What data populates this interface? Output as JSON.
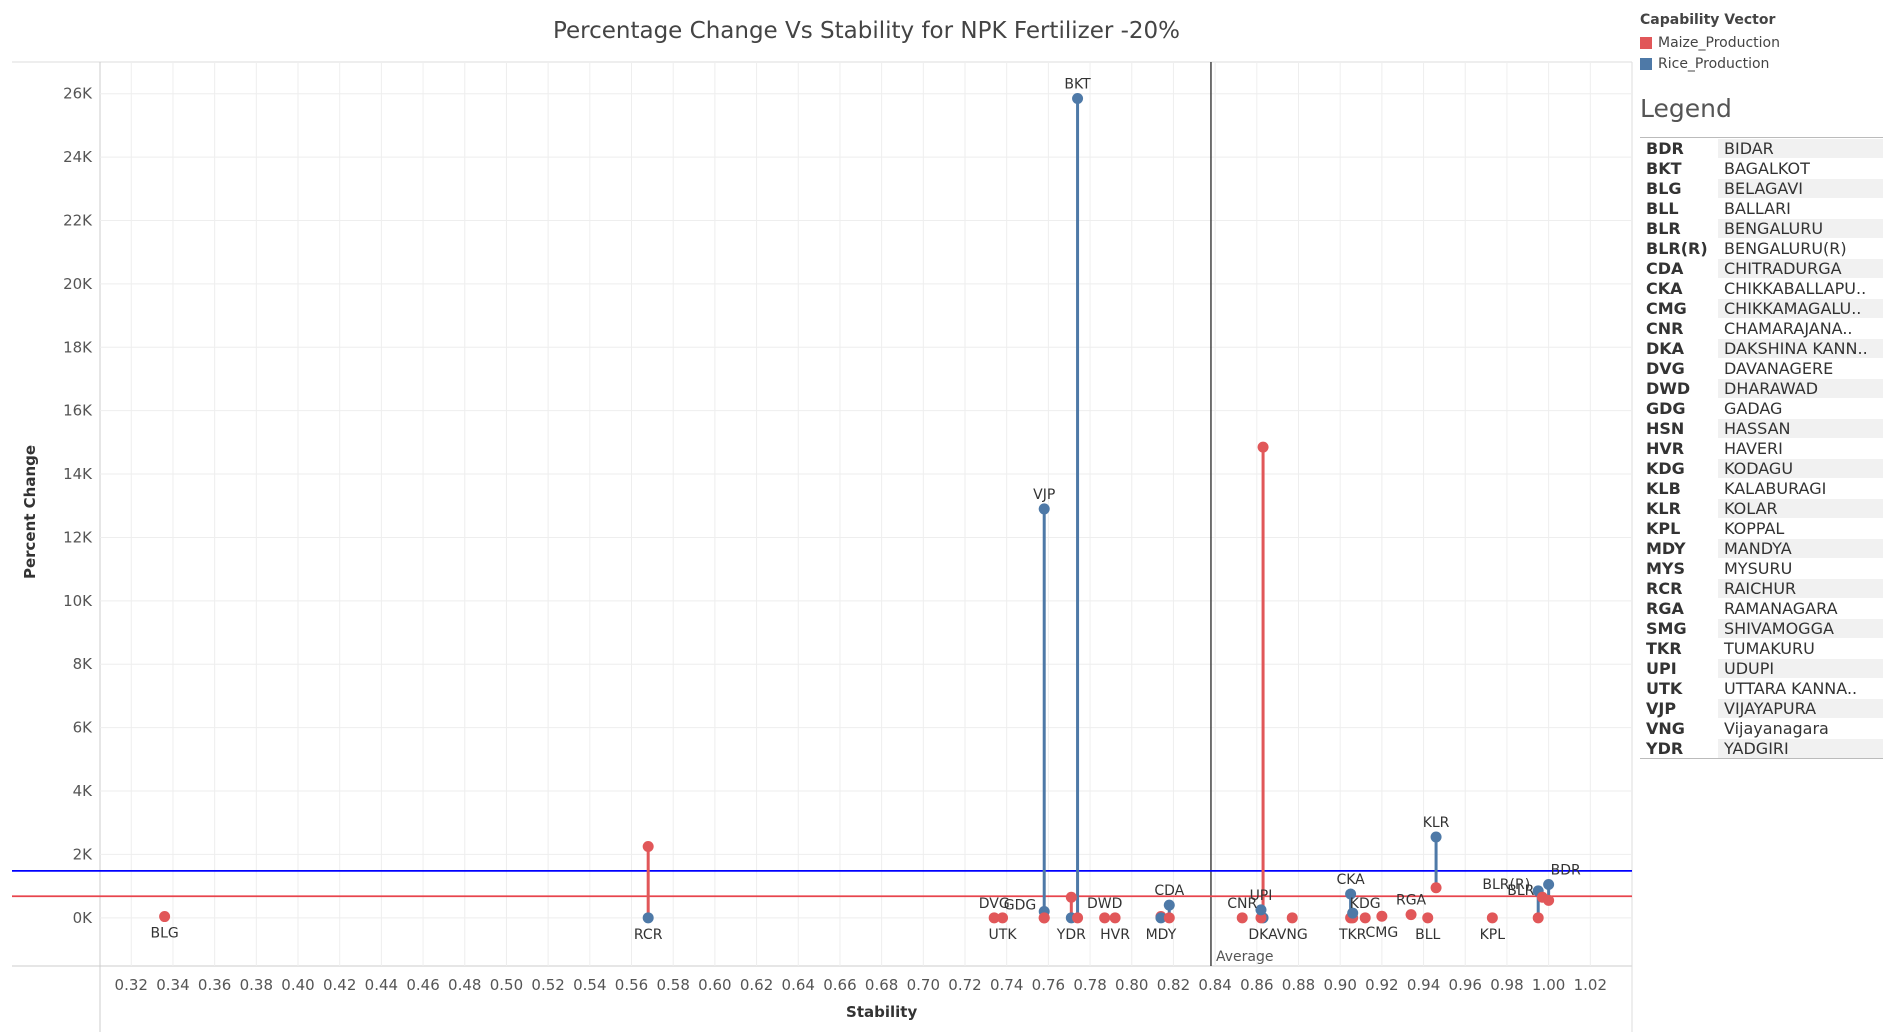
{
  "chart_data": {
    "type": "scatter",
    "title": "Percentage Change Vs Stability for NPK Fertilizer -20%",
    "xlabel": "Stability",
    "ylabel": "Percent Change",
    "xlim": [
      0.305,
      1.04
    ],
    "ylim": [
      -1520,
      27000
    ],
    "x_ticks": [
      "0.32",
      "0.34",
      "0.36",
      "0.38",
      "0.40",
      "0.42",
      "0.44",
      "0.46",
      "0.48",
      "0.50",
      "0.52",
      "0.54",
      "0.56",
      "0.58",
      "0.60",
      "0.62",
      "0.64",
      "0.66",
      "0.68",
      "0.70",
      "0.72",
      "0.74",
      "0.76",
      "0.78",
      "0.80",
      "0.82",
      "0.84",
      "0.86",
      "0.88",
      "0.90",
      "0.92",
      "0.94",
      "0.96",
      "0.98",
      "1.00",
      "1.02"
    ],
    "y_ticks": [
      {
        "value": 0,
        "label": "0K"
      },
      {
        "value": 2000,
        "label": "2K"
      },
      {
        "value": 4000,
        "label": "4K"
      },
      {
        "value": 6000,
        "label": "6K"
      },
      {
        "value": 8000,
        "label": "8K"
      },
      {
        "value": 10000,
        "label": "10K"
      },
      {
        "value": 12000,
        "label": "12K"
      },
      {
        "value": 14000,
        "label": "14K"
      },
      {
        "value": 16000,
        "label": "16K"
      },
      {
        "value": 18000,
        "label": "18K"
      },
      {
        "value": 20000,
        "label": "20K"
      },
      {
        "value": 22000,
        "label": "22K"
      },
      {
        "value": 24000,
        "label": "24K"
      },
      {
        "value": 26000,
        "label": "26K"
      }
    ],
    "reference_lines": {
      "vertical": {
        "x": 0.838,
        "label": "Average",
        "color": "#444444"
      },
      "horizontal": [
        {
          "y": 1480,
          "color": "#0000ff"
        },
        {
          "y": 680,
          "color": "#e8444c"
        }
      ]
    },
    "grid": true,
    "series": [
      {
        "name": "Maize_Production",
        "color": "#e15759"
      },
      {
        "name": "Rice_Production",
        "color": "#4e79a7"
      }
    ],
    "points": [
      {
        "code": "BLG",
        "x": 0.336,
        "maize": 40,
        "rice": null,
        "label_pos": "below"
      },
      {
        "code": "RCR",
        "x": 0.568,
        "maize": 2250,
        "rice": 0,
        "label_pos": "below"
      },
      {
        "code": "DVG",
        "x": 0.734,
        "maize": 0,
        "rice": null,
        "label_pos": "above"
      },
      {
        "code": "UTK",
        "x": 0.738,
        "maize": 0,
        "rice": null,
        "label_pos": "below"
      },
      {
        "code": "GDG",
        "x": 0.758,
        "maize": 0,
        "rice": 200,
        "label_pos": "left"
      },
      {
        "code": "VJP",
        "x": 0.758,
        "maize": 0,
        "rice": 12900,
        "label_pos": "above"
      },
      {
        "code": "YDR",
        "x": 0.771,
        "maize": 650,
        "rice": 0,
        "label_pos": "below"
      },
      {
        "code": "BKT",
        "x": 0.774,
        "maize": 0,
        "rice": 25850,
        "label_pos": "above"
      },
      {
        "code": "DWD",
        "x": 0.787,
        "maize": 0,
        "rice": null,
        "label_pos": "above"
      },
      {
        "code": "HVR",
        "x": 0.792,
        "maize": 0,
        "rice": null,
        "label_pos": "below"
      },
      {
        "code": "MDY",
        "x": 0.814,
        "maize": 40,
        "rice": 0,
        "label_pos": "below"
      },
      {
        "code": "CDA",
        "x": 0.818,
        "maize": 0,
        "rice": 400,
        "label_pos": "above"
      },
      {
        "code": "CNR",
        "x": 0.853,
        "maize": 0,
        "rice": null,
        "label_pos": "above"
      },
      {
        "code": "DKA",
        "x": 0.863,
        "maize": 14850,
        "rice": 0,
        "label_pos": "below"
      },
      {
        "code": "UPI",
        "x": 0.862,
        "maize": 0,
        "rice": 250,
        "label_pos": "above"
      },
      {
        "code": "VNG",
        "x": 0.877,
        "maize": 0,
        "rice": null,
        "label_pos": "below"
      },
      {
        "code": "CKA",
        "x": 0.905,
        "maize": 0,
        "rice": 750,
        "label_pos": "above"
      },
      {
        "code": "TKR",
        "x": 0.906,
        "maize": 0,
        "rice": 150,
        "label_pos": "below"
      },
      {
        "code": "KDG",
        "x": 0.912,
        "maize": 0,
        "rice": null,
        "label_pos": "above"
      },
      {
        "code": "CMG",
        "x": 0.92,
        "maize": 50,
        "rice": null,
        "label_pos": "below"
      },
      {
        "code": "RGA",
        "x": 0.934,
        "maize": 100,
        "rice": null,
        "label_pos": "above"
      },
      {
        "code": "BLL",
        "x": 0.942,
        "maize": 0,
        "rice": null,
        "label_pos": "below"
      },
      {
        "code": "KLR",
        "x": 0.946,
        "maize": 950,
        "rice": 2550,
        "label_pos": "above"
      },
      {
        "code": "KPL",
        "x": 0.973,
        "maize": 0,
        "rice": null,
        "label_pos": "below"
      },
      {
        "code": "BLR(R)",
        "x": 0.995,
        "maize": 0,
        "rice": 850,
        "label_pos": "left"
      },
      {
        "code": "BLR",
        "x": 0.997,
        "maize": 650,
        "rice": null,
        "label_pos": "left"
      },
      {
        "code": "BDR",
        "x": 1.0,
        "maize": 550,
        "rice": 1050,
        "label_pos": "right"
      }
    ]
  },
  "capability_vector": {
    "title": "Capability Vector",
    "items": [
      {
        "label": "Maize_Production",
        "color": "#e15759"
      },
      {
        "label": "Rice_Production",
        "color": "#4e79a7"
      }
    ]
  },
  "legend": {
    "title": "Legend",
    "rows": [
      {
        "code": "BDR",
        "name": "BIDAR"
      },
      {
        "code": "BKT",
        "name": "BAGALKOT"
      },
      {
        "code": "BLG",
        "name": "BELAGAVI"
      },
      {
        "code": "BLL",
        "name": "BALLARI"
      },
      {
        "code": "BLR",
        "name": "BENGALURU"
      },
      {
        "code": "BLR(R)",
        "name": "BENGALURU(R)"
      },
      {
        "code": "CDA",
        "name": "CHITRADURGA"
      },
      {
        "code": "CKA",
        "name": "CHIKKABALLAPU.."
      },
      {
        "code": "CMG",
        "name": "CHIKKAMAGALU.."
      },
      {
        "code": "CNR",
        "name": "CHAMARAJANA.."
      },
      {
        "code": "DKA",
        "name": "DAKSHINA KANN.."
      },
      {
        "code": "DVG",
        "name": "DAVANAGERE"
      },
      {
        "code": "DWD",
        "name": "DHARAWAD"
      },
      {
        "code": "GDG",
        "name": "GADAG"
      },
      {
        "code": "HSN",
        "name": "HASSAN"
      },
      {
        "code": "HVR",
        "name": "HAVERI"
      },
      {
        "code": "KDG",
        "name": "KODAGU"
      },
      {
        "code": "KLB",
        "name": "KALABURAGI"
      },
      {
        "code": "KLR",
        "name": "KOLAR"
      },
      {
        "code": "KPL",
        "name": "KOPPAL"
      },
      {
        "code": "MDY",
        "name": "MANDYA"
      },
      {
        "code": "MYS",
        "name": "MYSURU"
      },
      {
        "code": "RCR",
        "name": "RAICHUR"
      },
      {
        "code": "RGA",
        "name": "RAMANAGARA"
      },
      {
        "code": "SMG",
        "name": "SHIVAMOGGA"
      },
      {
        "code": "TKR",
        "name": "TUMAKURU"
      },
      {
        "code": "UPI",
        "name": "UDUPI"
      },
      {
        "code": "UTK",
        "name": "UTTARA KANNA.."
      },
      {
        "code": "VJP",
        "name": "VIJAYAPURA"
      },
      {
        "code": "VNG",
        "name": "Vijayanagara"
      },
      {
        "code": "YDR",
        "name": "YADGIRI"
      }
    ]
  }
}
